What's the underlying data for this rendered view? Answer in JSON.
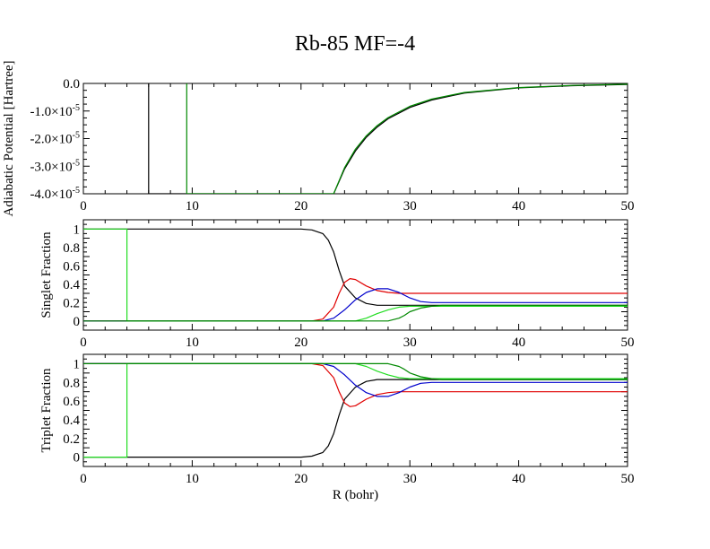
{
  "title": "Rb-85 MF=-4",
  "colors": {
    "black": "#000000",
    "red": "#e00000",
    "blue": "#0000cc",
    "green_dark": "#008800",
    "green_light": "#22dd22"
  },
  "chart_data": [
    {
      "type": "line",
      "panel": "potential",
      "xlim": [
        0,
        50
      ],
      "ylim": [
        -4e-05,
        0.0
      ],
      "xticks": [
        "0",
        "10",
        "20",
        "30",
        "40",
        "50"
      ],
      "yticks": [
        {
          "value": 0.0,
          "mantissa": "0.0",
          "exp": ""
        },
        {
          "value": -1e-05,
          "mantissa": "-1.0×10",
          "exp": "-5"
        },
        {
          "value": -2e-05,
          "mantissa": "-2.0×10",
          "exp": "-5"
        },
        {
          "value": -3e-05,
          "mantissa": "-3.0×10",
          "exp": "-5"
        },
        {
          "value": -4e-05,
          "mantissa": "-4.0×10",
          "exp": "-5"
        }
      ],
      "ylabel": "Adiabatic Potential [Hartree]",
      "xlabel": "",
      "series": [
        {
          "color": "#000000",
          "x": [
            6,
            6,
            23,
            24,
            25,
            26,
            27,
            28,
            30,
            32,
            35,
            40,
            45,
            50
          ],
          "y": [
            0.0,
            -4e-05,
            -4e-05,
            -3.1e-05,
            -2.45e-05,
            -1.95e-05,
            -1.58e-05,
            -1.28e-05,
            -8.7e-06,
            -6e-06,
            -3.5e-06,
            -1.6e-06,
            -8e-07,
            -4e-07
          ]
        },
        {
          "color": "#008800",
          "x": [
            9.5,
            9.5,
            23,
            24,
            25,
            26,
            27,
            28,
            30,
            32,
            35,
            40,
            45,
            50
          ],
          "y": [
            0.0,
            -4e-05,
            -4e-05,
            -3.05e-05,
            -2.38e-05,
            -1.9e-05,
            -1.53e-05,
            -1.24e-05,
            -8.3e-06,
            -5.7e-06,
            -3.3e-06,
            -1.5e-06,
            -7e-07,
            -3e-07
          ]
        }
      ]
    },
    {
      "type": "line",
      "panel": "singlet",
      "xlim": [
        0,
        50
      ],
      "ylim": [
        -0.1,
        1.1
      ],
      "xticks": [
        "0",
        "10",
        "20",
        "30",
        "40",
        "50"
      ],
      "yticks": [
        {
          "value": 0,
          "label": "0"
        },
        {
          "value": 0.2,
          "label": "0.2"
        },
        {
          "value": 0.4,
          "label": "0.4"
        },
        {
          "value": 0.6,
          "label": "0.6"
        },
        {
          "value": 0.8,
          "label": "0.8"
        },
        {
          "value": 1,
          "label": "1"
        }
      ],
      "ylabel": "Singlet Fraction",
      "xlabel": "",
      "series": [
        {
          "color": "#000000",
          "x": [
            0,
            20,
            21,
            22,
            22.5,
            23,
            23.5,
            24,
            25,
            26,
            27,
            28,
            30,
            50
          ],
          "y": [
            1.0,
            1.0,
            0.99,
            0.95,
            0.88,
            0.75,
            0.55,
            0.38,
            0.25,
            0.19,
            0.17,
            0.17,
            0.17,
            0.17
          ]
        },
        {
          "color": "#e00000",
          "x": [
            0,
            21,
            22,
            23,
            23.5,
            24,
            24.5,
            25,
            26,
            27,
            28,
            29,
            30,
            32,
            50
          ],
          "y": [
            0.0,
            0.0,
            0.02,
            0.15,
            0.3,
            0.42,
            0.46,
            0.45,
            0.38,
            0.33,
            0.31,
            0.3,
            0.3,
            0.3,
            0.3
          ]
        },
        {
          "color": "#0000cc",
          "x": [
            0,
            22,
            23,
            24,
            25,
            26,
            27,
            28,
            29,
            30,
            31,
            32,
            35,
            50
          ],
          "y": [
            0.0,
            0.0,
            0.03,
            0.12,
            0.23,
            0.31,
            0.35,
            0.35,
            0.31,
            0.25,
            0.21,
            0.2,
            0.2,
            0.2
          ]
        },
        {
          "color": "#22dd22",
          "x": [
            0,
            4,
            4,
            25,
            26,
            27,
            28,
            29,
            30,
            31,
            32,
            50
          ],
          "y": [
            1.0,
            1.0,
            0.0,
            0.0,
            0.03,
            0.08,
            0.12,
            0.15,
            0.16,
            0.16,
            0.16,
            0.16
          ]
        },
        {
          "color": "#008800",
          "x": [
            0,
            4,
            4,
            28,
            29,
            29.5,
            30,
            31,
            32,
            33,
            50
          ],
          "y": [
            0.0,
            0.0,
            0.0,
            0.0,
            0.03,
            0.06,
            0.1,
            0.14,
            0.16,
            0.17,
            0.17
          ]
        }
      ]
    },
    {
      "type": "line",
      "panel": "triplet",
      "xlim": [
        0,
        50
      ],
      "ylim": [
        -0.1,
        1.1
      ],
      "xticks": [
        "0",
        "10",
        "20",
        "30",
        "40",
        "50"
      ],
      "yticks": [
        {
          "value": 0,
          "label": "0"
        },
        {
          "value": 0.2,
          "label": "0.2"
        },
        {
          "value": 0.4,
          "label": "0.4"
        },
        {
          "value": 0.6,
          "label": "0.6"
        },
        {
          "value": 0.8,
          "label": "0.8"
        },
        {
          "value": 1,
          "label": "1"
        }
      ],
      "ylabel": "Triplet Fraction",
      "xlabel": "R (bohr)",
      "series": [
        {
          "color": "#000000",
          "x": [
            0,
            20,
            21,
            22,
            22.5,
            23,
            23.5,
            24,
            25,
            26,
            27,
            28,
            30,
            50
          ],
          "y": [
            0.0,
            0.0,
            0.01,
            0.05,
            0.12,
            0.25,
            0.45,
            0.62,
            0.75,
            0.81,
            0.83,
            0.83,
            0.83,
            0.83
          ]
        },
        {
          "color": "#e00000",
          "x": [
            0,
            21,
            22,
            23,
            23.5,
            24,
            24.5,
            25,
            26,
            27,
            28,
            29,
            30,
            32,
            50
          ],
          "y": [
            1.0,
            1.0,
            0.98,
            0.85,
            0.7,
            0.58,
            0.54,
            0.55,
            0.62,
            0.67,
            0.69,
            0.7,
            0.7,
            0.7,
            0.7
          ]
        },
        {
          "color": "#0000cc",
          "x": [
            0,
            22,
            23,
            24,
            25,
            26,
            27,
            28,
            29,
            30,
            31,
            32,
            35,
            50
          ],
          "y": [
            1.0,
            1.0,
            0.97,
            0.88,
            0.77,
            0.69,
            0.65,
            0.65,
            0.69,
            0.75,
            0.79,
            0.8,
            0.8,
            0.8
          ]
        },
        {
          "color": "#22dd22",
          "x": [
            0,
            4,
            4,
            25,
            26,
            27,
            28,
            29,
            30,
            31,
            32,
            50
          ],
          "y": [
            0.0,
            0.0,
            1.0,
            1.0,
            0.97,
            0.92,
            0.88,
            0.85,
            0.84,
            0.84,
            0.84,
            0.84
          ]
        },
        {
          "color": "#008800",
          "x": [
            0,
            4,
            4,
            28,
            29,
            29.5,
            30,
            31,
            32,
            33,
            50
          ],
          "y": [
            1.0,
            1.0,
            1.0,
            1.0,
            0.97,
            0.94,
            0.9,
            0.86,
            0.84,
            0.83,
            0.83
          ]
        }
      ]
    }
  ]
}
